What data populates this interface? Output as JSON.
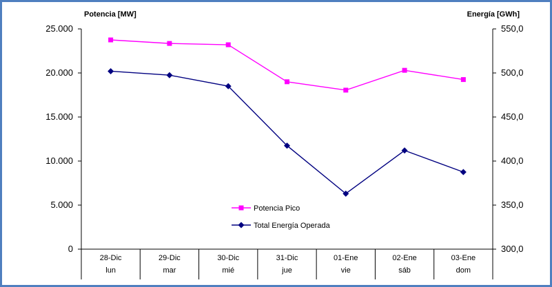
{
  "chart_data": {
    "type": "line",
    "categories": [
      {
        "date": "28-Dic",
        "day": "lun"
      },
      {
        "date": "29-Dic",
        "day": "mar"
      },
      {
        "date": "30-Dic",
        "day": "mié"
      },
      {
        "date": "31-Dic",
        "day": "jue"
      },
      {
        "date": "01-Ene",
        "day": "vie"
      },
      {
        "date": "02-Ene",
        "day": "sáb"
      },
      {
        "date": "03-Ene",
        "day": "dom"
      }
    ],
    "y_left": {
      "label": "Potencia [MW]",
      "range": [
        0,
        25000
      ],
      "ticks": [
        "0",
        "5.000",
        "10.000",
        "15.000",
        "20.000",
        "25.000"
      ]
    },
    "y_right": {
      "label": "Energía [GWh]",
      "range": [
        300,
        550
      ],
      "ticks": [
        "300,0",
        "350,0",
        "400,0",
        "450,0",
        "500,0",
        "550,0"
      ]
    },
    "series": [
      {
        "name": "Potencia Pico",
        "axis": "left",
        "color": "#ff00ff",
        "marker": "square",
        "values": [
          23750,
          23350,
          23200,
          19000,
          18050,
          20300,
          19250
        ]
      },
      {
        "name": "Total Energía Operada",
        "axis": "right",
        "color": "#000080",
        "marker": "diamond",
        "values": [
          502,
          497.5,
          485,
          417.5,
          363,
          412,
          387.5
        ]
      }
    ],
    "legend_position": "inside-bottom-left",
    "grid": false
  }
}
